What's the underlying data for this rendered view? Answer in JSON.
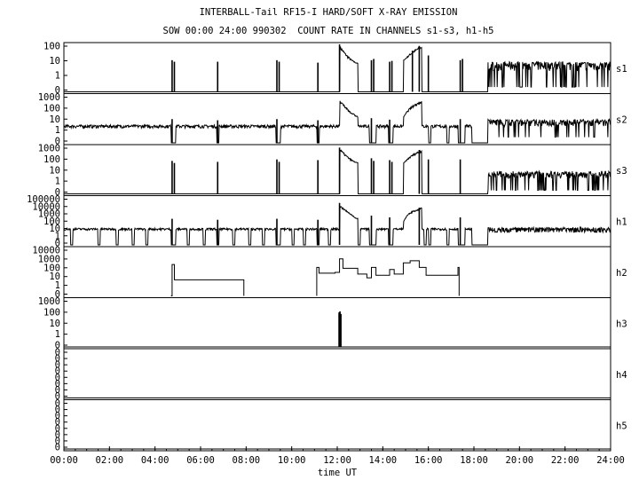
{
  "title": "INTERBALL-Tail RF15-I HARD/SOFT X-RAY EMISSION",
  "subtitle": "SOW 00:00 24:00 990302  COUNT RATE IN CHANNELS s1-s3, h1-h5",
  "chart_data": {
    "type": "line",
    "xlabel": "time UT",
    "xlim": [
      0,
      24
    ],
    "x_tick_labels": [
      "00:00",
      "02:00",
      "04:00",
      "06:00",
      "08:00",
      "10:00",
      "12:00",
      "14:00",
      "16:00",
      "18:00",
      "20:00",
      "22:00",
      "24:00"
    ],
    "y_scale": "log",
    "panels": [
      {
        "name": "s1",
        "y_tick_labels": [
          "100",
          "10",
          "1",
          "0"
        ],
        "ylim": [
          0.1,
          100
        ],
        "baseline": 0.1,
        "spikes": [
          [
            4.75,
            10
          ],
          [
            4.85,
            8
          ],
          [
            6.75,
            8
          ],
          [
            9.35,
            10
          ],
          [
            9.45,
            8
          ],
          [
            11.15,
            7
          ],
          [
            12.1,
            100
          ],
          [
            13.5,
            10
          ],
          [
            13.6,
            12
          ],
          [
            14.3,
            8
          ],
          [
            14.4,
            9
          ],
          [
            15.3,
            40
          ],
          [
            15.6,
            80
          ],
          [
            16.0,
            20
          ],
          [
            17.4,
            10
          ],
          [
            17.5,
            12
          ]
        ],
        "dropouts": [
          [
            18.6,
            24
          ]
        ],
        "bursts": [
          {
            "from": 12.1,
            "to": 12.9,
            "peak": 90,
            "base": 5
          },
          {
            "from": 14.9,
            "to": 15.7,
            "peak": 80,
            "base": 10
          }
        ],
        "noise": {
          "from": 18.6,
          "to": 24,
          "level": 5,
          "low": 0.2
        }
      },
      {
        "name": "s2",
        "y_tick_labels": [
          "1000",
          "100",
          "10",
          "1",
          "0"
        ],
        "ylim": [
          0.1,
          1000
        ],
        "baseline": 2.5,
        "spikes": [
          [
            4.75,
            10
          ],
          [
            6.75,
            8
          ],
          [
            9.35,
            10
          ],
          [
            11.15,
            8
          ],
          [
            13.5,
            12
          ],
          [
            14.3,
            9
          ],
          [
            17.4,
            10
          ]
        ],
        "dropouts": [
          [
            4.7,
            4.9
          ],
          [
            6.7,
            6.8
          ],
          [
            9.3,
            9.5
          ],
          [
            11.1,
            11.2
          ],
          [
            13.4,
            13.7
          ],
          [
            14.25,
            14.45
          ],
          [
            16.0,
            16.1
          ],
          [
            16.8,
            16.9
          ],
          [
            17.3,
            17.6
          ],
          [
            17.9,
            18.6
          ]
        ],
        "bursts": [
          {
            "from": 12.1,
            "to": 12.9,
            "peak": 400,
            "base": 10
          },
          {
            "from": 14.9,
            "to": 15.7,
            "peak": 350,
            "base": 15
          }
        ],
        "noise": {
          "from": 18.6,
          "to": 24,
          "level": 6,
          "low": 0.3
        }
      },
      {
        "name": "s3",
        "y_tick_labels": [
          "1000",
          "100",
          "10",
          "1",
          "0"
        ],
        "ylim": [
          0.1,
          1000
        ],
        "baseline": 0.1,
        "spikes": [
          [
            4.75,
            60
          ],
          [
            4.85,
            40
          ],
          [
            6.75,
            50
          ],
          [
            9.35,
            80
          ],
          [
            9.45,
            50
          ],
          [
            11.15,
            70
          ],
          [
            12.1,
            800
          ],
          [
            13.5,
            100
          ],
          [
            13.6,
            60
          ],
          [
            14.3,
            70
          ],
          [
            14.4,
            50
          ],
          [
            15.6,
            500
          ],
          [
            16.0,
            80
          ],
          [
            17.4,
            80
          ]
        ],
        "dropouts": [
          [
            18.6,
            24
          ]
        ],
        "bursts": [
          {
            "from": 12.1,
            "to": 12.9,
            "peak": 700,
            "base": 30
          },
          {
            "from": 14.9,
            "to": 15.7,
            "peak": 500,
            "base": 40
          }
        ],
        "noise": {
          "from": 18.6,
          "to": 24,
          "level": 5,
          "low": 0.2
        }
      },
      {
        "name": "h1",
        "y_tick_labels": [
          "100000",
          "10000",
          "1000",
          "100",
          "10",
          "1",
          "0"
        ],
        "ylim": [
          0.1,
          100000
        ],
        "baseline": 10,
        "spikes": [
          [
            4.75,
            200
          ],
          [
            6.75,
            150
          ],
          [
            9.35,
            200
          ],
          [
            11.15,
            150
          ],
          [
            12.1,
            20000
          ],
          [
            13.5,
            500
          ],
          [
            14.3,
            300
          ],
          [
            15.6,
            5000
          ],
          [
            17.4,
            300
          ]
        ],
        "dropouts": [
          [
            0.3,
            0.4
          ],
          [
            1.5,
            1.6
          ],
          [
            2.3,
            2.4
          ],
          [
            3.0,
            3.1
          ],
          [
            3.6,
            3.7
          ],
          [
            4.7,
            4.9
          ],
          [
            5.4,
            5.5
          ],
          [
            6.1,
            6.2
          ],
          [
            6.7,
            6.8
          ],
          [
            7.4,
            7.5
          ],
          [
            8.1,
            8.2
          ],
          [
            8.7,
            8.8
          ],
          [
            9.3,
            9.5
          ],
          [
            10.0,
            10.1
          ],
          [
            10.5,
            10.6
          ],
          [
            11.1,
            11.2
          ],
          [
            11.6,
            11.7
          ],
          [
            12.9,
            13.0
          ],
          [
            13.4,
            13.7
          ],
          [
            14.25,
            14.45
          ],
          [
            15.8,
            15.9
          ],
          [
            16.0,
            16.1
          ],
          [
            16.8,
            16.9
          ],
          [
            17.3,
            17.6
          ],
          [
            17.9,
            18.6
          ]
        ],
        "bursts": [
          {
            "from": 12.1,
            "to": 12.9,
            "peak": 10000,
            "base": 50
          },
          {
            "from": 14.9,
            "to": 15.7,
            "peak": 5000,
            "base": 80
          }
        ],
        "noise": {
          "from": 18.6,
          "to": 24,
          "level": 10,
          "low": 4
        }
      },
      {
        "name": "h2",
        "y_tick_labels": [
          "10000",
          "1000",
          "100",
          "10",
          "1",
          "0"
        ],
        "ylim": [
          0.1,
          10000
        ],
        "baseline": 0.1,
        "steps": [
          [
            4.7,
            4.75,
            0.1
          ],
          [
            4.75,
            4.85,
            200
          ],
          [
            4.85,
            7.9,
            5
          ],
          [
            11.1,
            11.2,
            100
          ],
          [
            11.2,
            11.9,
            25
          ],
          [
            11.9,
            12.1,
            30
          ],
          [
            12.1,
            12.25,
            800
          ],
          [
            12.25,
            12.9,
            80
          ],
          [
            12.9,
            13.3,
            20
          ],
          [
            13.3,
            13.5,
            8
          ],
          [
            13.5,
            13.7,
            100
          ],
          [
            13.7,
            14.3,
            15
          ],
          [
            14.3,
            14.5,
            60
          ],
          [
            14.5,
            14.9,
            20
          ],
          [
            14.9,
            15.2,
            300
          ],
          [
            15.2,
            15.6,
            500
          ],
          [
            15.6,
            15.9,
            100
          ],
          [
            15.9,
            16.8,
            15
          ],
          [
            16.8,
            17.3,
            15
          ],
          [
            17.3,
            17.35,
            100
          ]
        ],
        "spikes": [],
        "dropouts": [],
        "bursts": [],
        "noise": null
      },
      {
        "name": "h3",
        "y_tick_labels": [
          "1000",
          "100",
          "10",
          "1",
          "0"
        ],
        "ylim": [
          0.1,
          1000
        ],
        "baseline": 0.1,
        "spikes": [
          [
            12.08,
            80
          ],
          [
            12.12,
            100
          ],
          [
            12.16,
            60
          ]
        ],
        "dropouts": [],
        "bursts": [],
        "noise": null
      },
      {
        "name": "h4",
        "y_tick_labels": [
          "0",
          "0",
          "0",
          "0",
          "0",
          "0",
          "0",
          "0"
        ],
        "ylim": [
          0.1,
          1000
        ],
        "baseline": 0.1,
        "spikes": [],
        "dropouts": [],
        "bursts": [],
        "noise": null
      },
      {
        "name": "h5",
        "y_tick_labels": [
          "0",
          "0",
          "0",
          "0",
          "0",
          "0",
          "0",
          "0"
        ],
        "ylim": [
          0.1,
          1000
        ],
        "baseline": 0.1,
        "spikes": [],
        "dropouts": [],
        "bursts": [],
        "noise": null
      }
    ]
  }
}
